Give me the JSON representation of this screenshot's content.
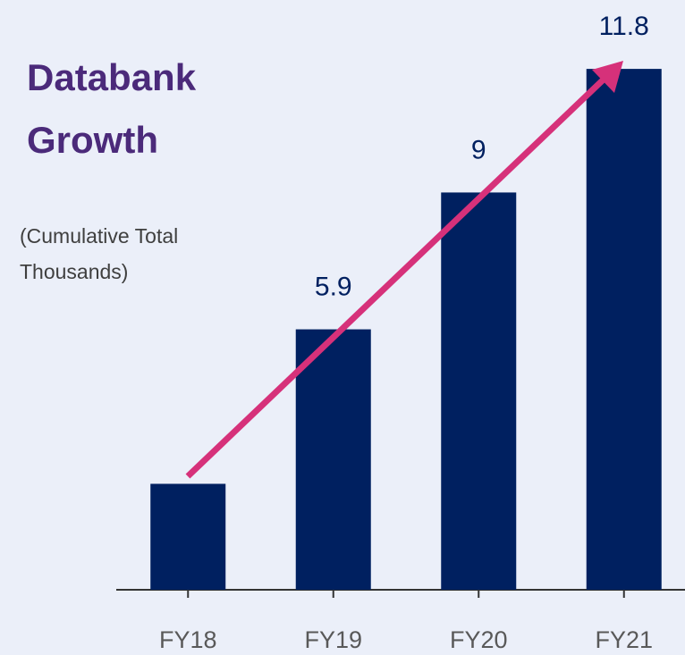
{
  "chart_data": {
    "type": "bar",
    "title": "Databank Growth",
    "subtitle": "(Cumulative Total Thousands)",
    "categories": [
      "FY18",
      "FY19",
      "FY20",
      "FY21"
    ],
    "values": [
      2.4,
      5.9,
      9,
      11.8
    ],
    "value_labels": [
      null,
      "5.9",
      "9",
      "11.8"
    ],
    "color": "#002060",
    "ylim": [
      0,
      13.3
    ]
  }
}
